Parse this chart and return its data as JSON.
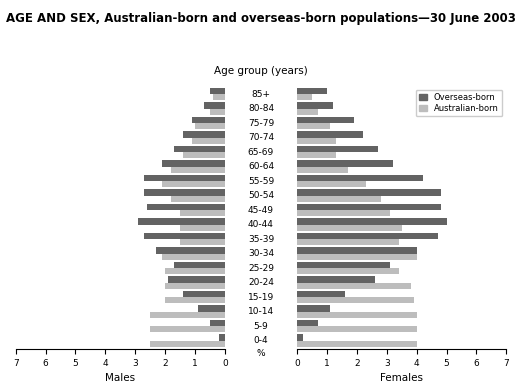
{
  "title": "AGE AND SEX, Australian-born and overseas-born populations—30 June 2003",
  "xlabel_left": "Males",
  "xlabel_right": "Females",
  "ylabel": "Age group (years)",
  "age_groups": [
    "0-4",
    "5-9",
    "10-14",
    "15-19",
    "20-24",
    "25-29",
    "30-34",
    "35-39",
    "40-44",
    "45-49",
    "50-54",
    "55-59",
    "60-64",
    "65-69",
    "70-74",
    "75-79",
    "80-84",
    "85+"
  ],
  "male_overseas": [
    0.2,
    0.5,
    0.9,
    1.4,
    1.9,
    1.7,
    2.3,
    2.7,
    2.9,
    2.6,
    2.7,
    2.7,
    2.1,
    1.7,
    1.4,
    1.1,
    0.7,
    0.5
  ],
  "male_australian": [
    2.5,
    2.5,
    2.5,
    2.0,
    2.0,
    2.0,
    2.1,
    1.5,
    1.5,
    1.5,
    1.8,
    2.1,
    1.8,
    1.4,
    1.1,
    1.0,
    0.5,
    0.4
  ],
  "female_overseas": [
    0.2,
    0.7,
    1.1,
    1.6,
    2.6,
    3.1,
    4.0,
    4.7,
    5.0,
    4.8,
    4.8,
    4.2,
    3.2,
    2.7,
    2.2,
    1.9,
    1.2,
    1.0
  ],
  "female_australian": [
    4.0,
    4.0,
    4.0,
    3.9,
    3.8,
    3.4,
    4.0,
    3.4,
    3.5,
    3.1,
    2.8,
    2.3,
    1.7,
    1.3,
    1.3,
    1.1,
    0.7,
    0.5
  ],
  "color_overseas": "#636363",
  "color_australian": "#bdbdbd",
  "xlim": 7,
  "background_color": "#ffffff",
  "title_fontsize": 8.5,
  "tick_fontsize": 6.5,
  "label_fontsize": 7.5,
  "bar_height": 0.42
}
